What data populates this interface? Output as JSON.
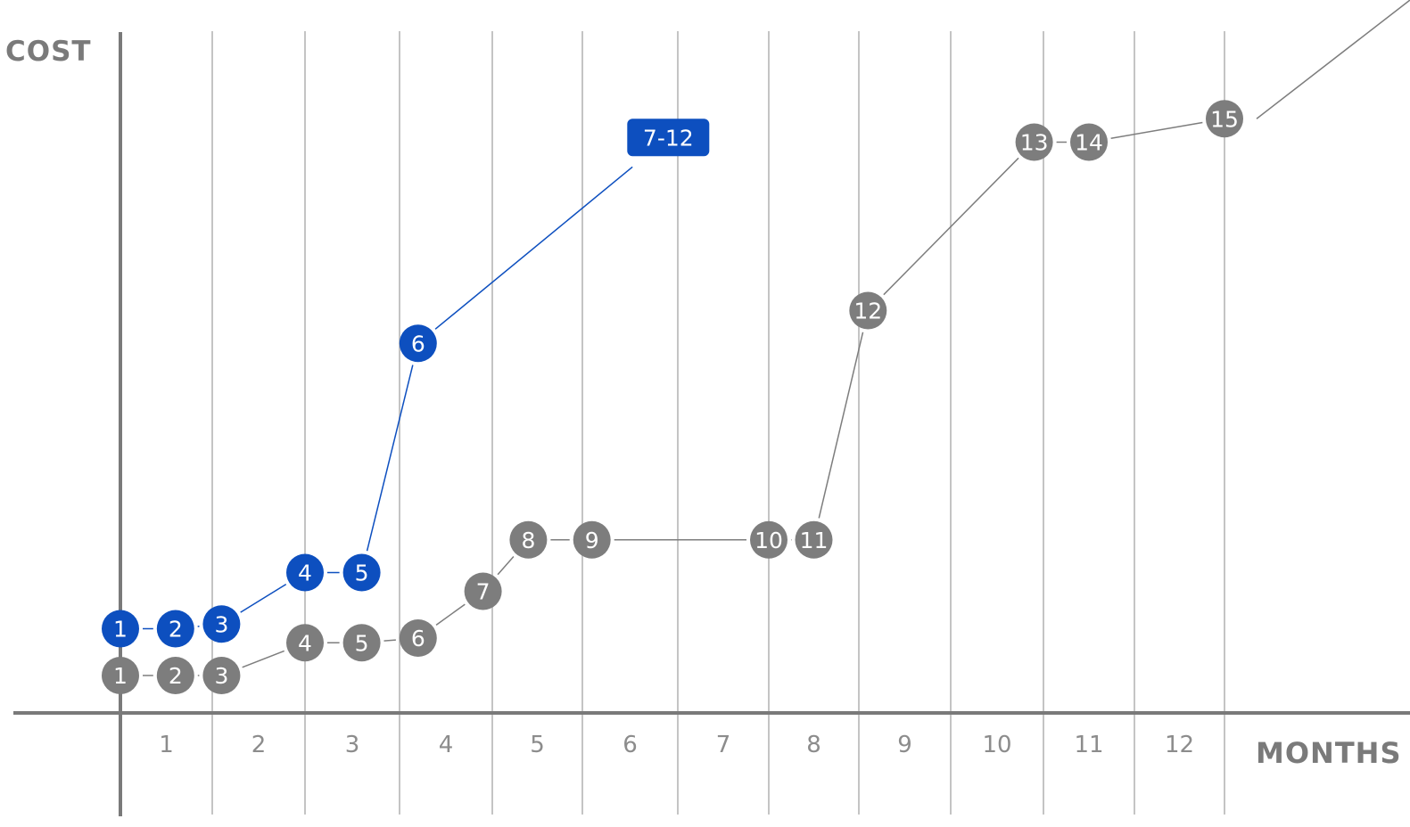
{
  "chart_data": {
    "type": "line",
    "xlabel": "MONTHS",
    "ylabel": "COST",
    "x_ticks": [
      "1",
      "2",
      "3",
      "4",
      "5",
      "6",
      "7",
      "8",
      "9",
      "10",
      "11",
      "12"
    ],
    "grid": "vertical lines only",
    "colors": {
      "blue": "#0d4fbf",
      "gray": "#7d7d7d",
      "grid": "#c4c4c4",
      "axis": "#7a7a7a"
    },
    "series": [
      {
        "color": "blue",
        "points": [
          {
            "label": "1",
            "x": 0.0,
            "y": 0.18
          },
          {
            "label": "2",
            "x": 0.6,
            "y": 0.18
          },
          {
            "label": "3",
            "x": 1.1,
            "y": 0.19
          },
          {
            "label": "4",
            "x": 2.0,
            "y": 0.3
          },
          {
            "label": "5",
            "x": 2.6,
            "y": 0.3
          },
          {
            "label": "6",
            "x": 3.2,
            "y": 0.79
          },
          {
            "label": "7-12",
            "x": 5.9,
            "y": 1.23,
            "shape": "box"
          }
        ]
      },
      {
        "color": "gray",
        "points": [
          {
            "label": "1",
            "x": 0.0,
            "y": 0.08
          },
          {
            "label": "2",
            "x": 0.6,
            "y": 0.08
          },
          {
            "label": "3",
            "x": 1.1,
            "y": 0.08
          },
          {
            "label": "4",
            "x": 2.0,
            "y": 0.15
          },
          {
            "label": "5",
            "x": 2.6,
            "y": 0.15
          },
          {
            "label": "6",
            "x": 3.2,
            "y": 0.16
          },
          {
            "label": "7",
            "x": 3.9,
            "y": 0.26
          },
          {
            "label": "8",
            "x": 4.4,
            "y": 0.37
          },
          {
            "label": "9",
            "x": 5.1,
            "y": 0.37
          },
          {
            "label": "10",
            "x": 7.0,
            "y": 0.37
          },
          {
            "label": "11",
            "x": 7.5,
            "y": 0.37
          },
          {
            "label": "12",
            "x": 8.1,
            "y": 0.86
          },
          {
            "label": "13",
            "x": 9.9,
            "y": 1.22
          },
          {
            "label": "14",
            "x": 10.5,
            "y": 1.22
          },
          {
            "label": "15",
            "x": 12.0,
            "y": 1.27
          }
        ]
      }
    ]
  }
}
